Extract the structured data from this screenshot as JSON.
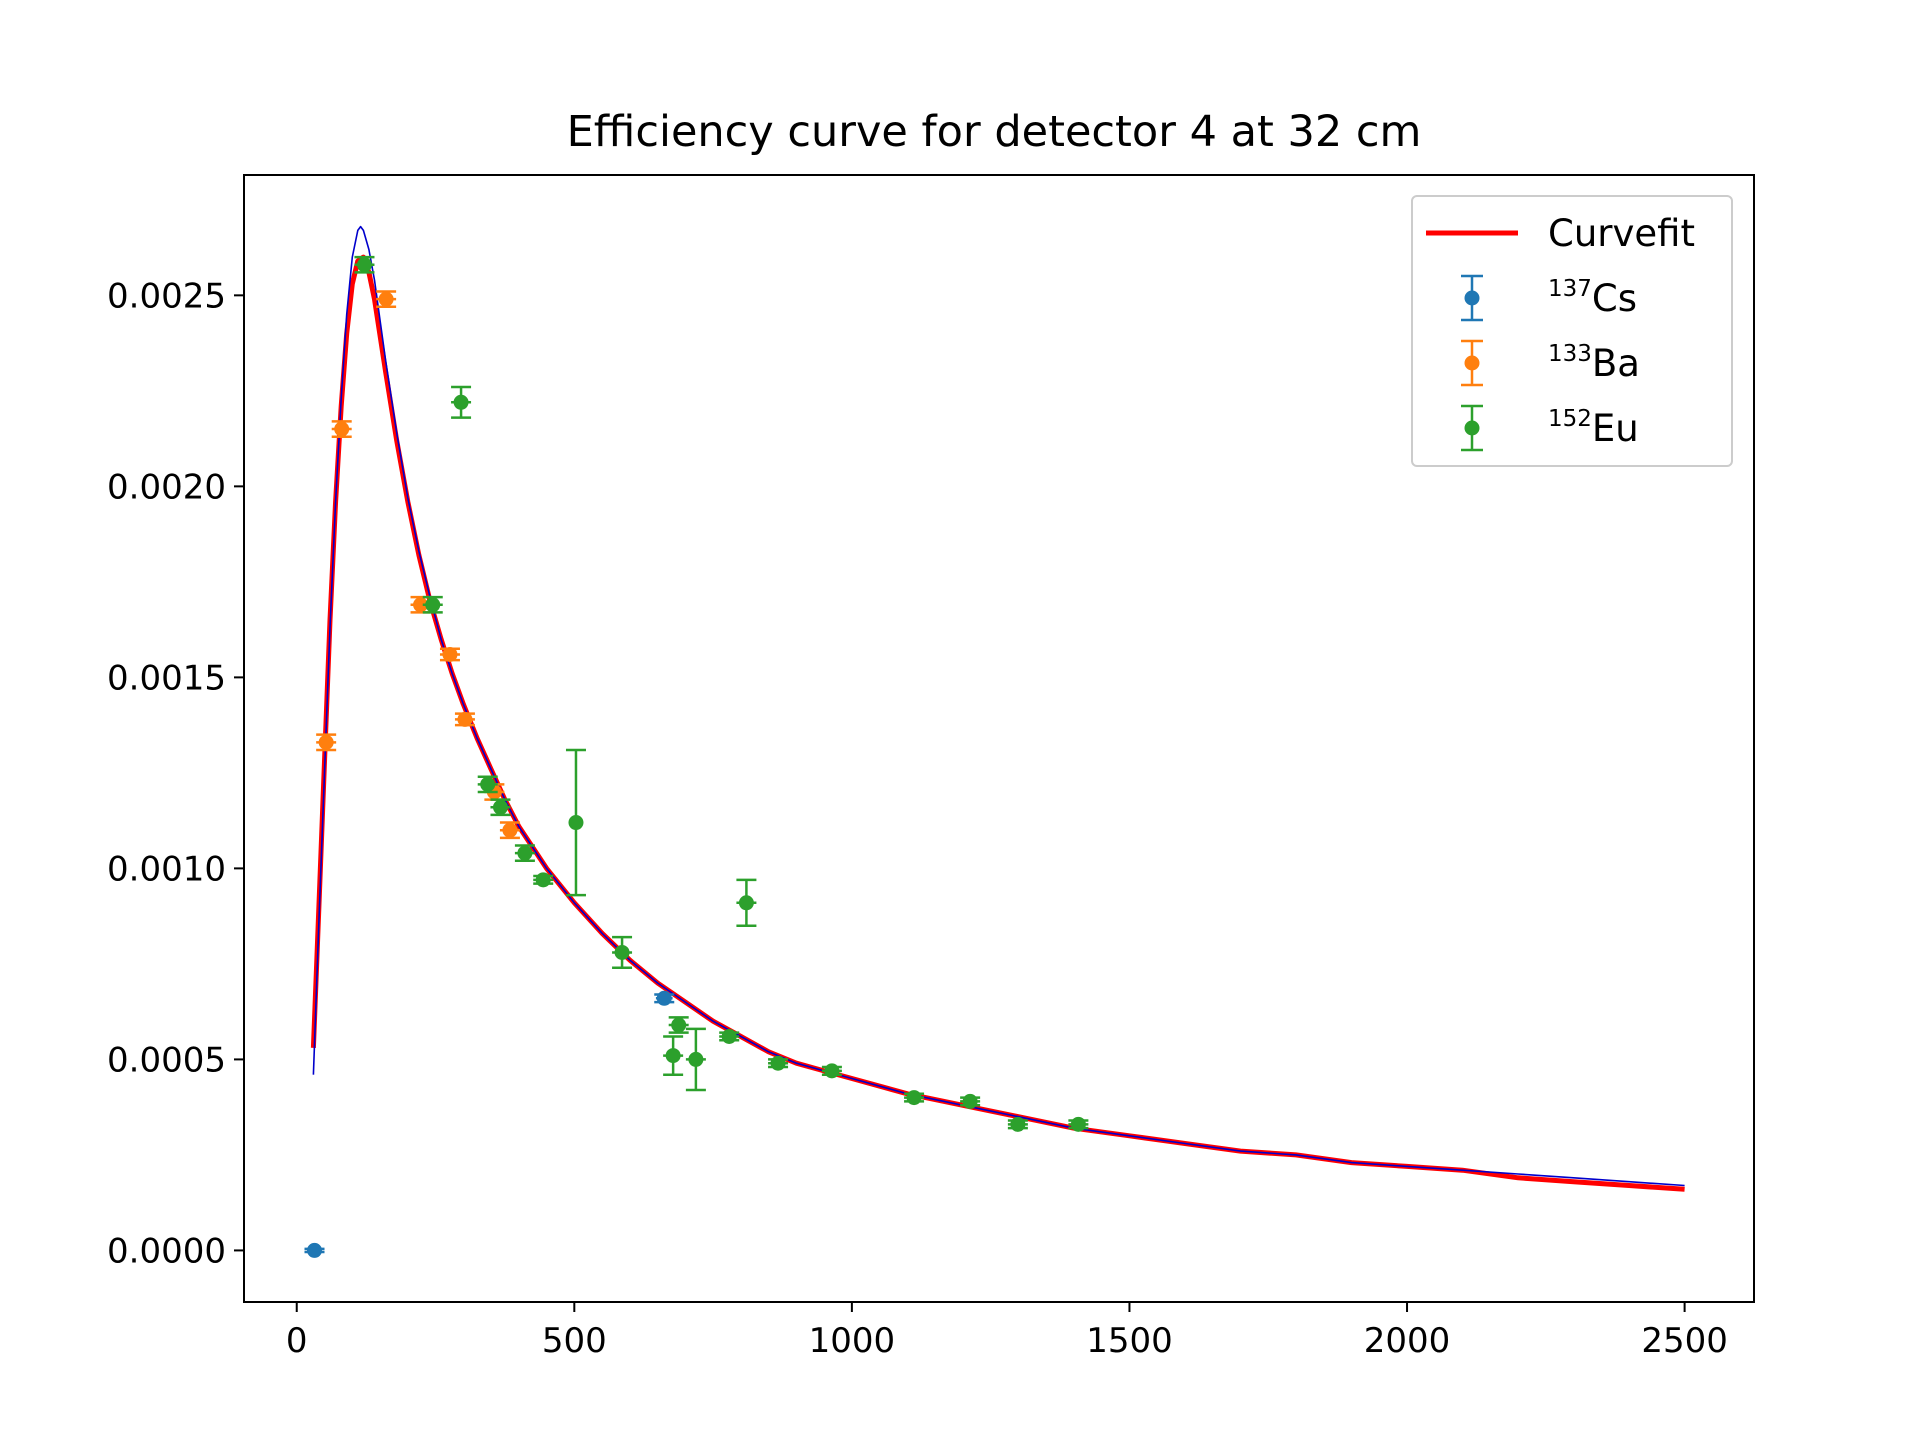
{
  "chart_data": {
    "type": "scatter",
    "title": "Efficiency curve for detector 4 at 32 cm",
    "xlabel": "",
    "ylabel": "",
    "xlim": [
      -95,
      2625
    ],
    "ylim": [
      -0.000135,
      0.002815
    ],
    "xticks": [
      0,
      500,
      1000,
      1500,
      2000,
      2500
    ],
    "xtick_labels": [
      "0",
      "500",
      "1000",
      "1500",
      "2000",
      "2500"
    ],
    "yticks": [
      0.0,
      0.0005,
      0.001,
      0.0015,
      0.002,
      0.0025
    ],
    "ytick_labels": [
      "0.0000",
      "0.0005",
      "0.0010",
      "0.0015",
      "0.0020",
      "0.0025"
    ],
    "grid": false,
    "legend_position": "top-right",
    "series": [
      {
        "name": "Curvefit",
        "kind": "line",
        "color": "#ff0000",
        "points": [
          [
            30,
            0.00053
          ],
          [
            40,
            0.0009
          ],
          [
            50,
            0.00128
          ],
          [
            60,
            0.00165
          ],
          [
            70,
            0.00196
          ],
          [
            80,
            0.00221
          ],
          [
            90,
            0.0024
          ],
          [
            100,
            0.00253
          ],
          [
            110,
            0.00259
          ],
          [
            120,
            0.0026
          ],
          [
            130,
            0.00256
          ],
          [
            140,
            0.00249
          ],
          [
            160,
            0.0023
          ],
          [
            180,
            0.00212
          ],
          [
            200,
            0.00196
          ],
          [
            220,
            0.00182
          ],
          [
            240,
            0.0017
          ],
          [
            260,
            0.0016
          ],
          [
            280,
            0.00151
          ],
          [
            300,
            0.00143
          ],
          [
            325,
            0.00134
          ],
          [
            350,
            0.00126
          ],
          [
            375,
            0.00118
          ],
          [
            400,
            0.00111
          ],
          [
            450,
            0.001
          ],
          [
            500,
            0.00091
          ],
          [
            550,
            0.00083
          ],
          [
            600,
            0.00076
          ],
          [
            650,
            0.0007
          ],
          [
            700,
            0.00065
          ],
          [
            750,
            0.0006
          ],
          [
            800,
            0.00056
          ],
          [
            850,
            0.00052
          ],
          [
            900,
            0.00049
          ],
          [
            950,
            0.00047
          ],
          [
            1000,
            0.00045
          ],
          [
            1100,
            0.00041
          ],
          [
            1200,
            0.00038
          ],
          [
            1300,
            0.00035
          ],
          [
            1400,
            0.00032
          ],
          [
            1500,
            0.0003
          ],
          [
            1600,
            0.00028
          ],
          [
            1700,
            0.00026
          ],
          [
            1800,
            0.00025
          ],
          [
            1900,
            0.00023
          ],
          [
            2000,
            0.00022
          ],
          [
            2100,
            0.00021
          ],
          [
            2200,
            0.00019
          ],
          [
            2300,
            0.00018
          ],
          [
            2400,
            0.00017
          ],
          [
            2500,
            0.00016
          ]
        ]
      },
      {
        "name": "",
        "kind": "line",
        "color": "#0000cc",
        "points": [
          [
            30,
            0.00046
          ],
          [
            40,
            0.00086
          ],
          [
            50,
            0.00125
          ],
          [
            60,
            0.00163
          ],
          [
            70,
            0.00196
          ],
          [
            80,
            0.00223
          ],
          [
            90,
            0.00245
          ],
          [
            100,
            0.0026
          ],
          [
            110,
            0.00267
          ],
          [
            115,
            0.00268
          ],
          [
            120,
            0.00267
          ],
          [
            130,
            0.00262
          ],
          [
            140,
            0.00254
          ],
          [
            160,
            0.00233
          ],
          [
            180,
            0.00214
          ],
          [
            200,
            0.00197
          ],
          [
            220,
            0.00183
          ],
          [
            240,
            0.00171
          ],
          [
            260,
            0.0016
          ],
          [
            280,
            0.00151
          ],
          [
            300,
            0.00143
          ],
          [
            325,
            0.00134
          ],
          [
            350,
            0.00126
          ],
          [
            375,
            0.00118
          ],
          [
            400,
            0.00111
          ],
          [
            450,
            0.001
          ],
          [
            500,
            0.00091
          ],
          [
            550,
            0.00083
          ],
          [
            600,
            0.00076
          ],
          [
            650,
            0.0007
          ],
          [
            700,
            0.00065
          ],
          [
            750,
            0.0006
          ],
          [
            800,
            0.00056
          ],
          [
            850,
            0.00052
          ],
          [
            900,
            0.00049
          ],
          [
            950,
            0.00047
          ],
          [
            1000,
            0.00045
          ],
          [
            1100,
            0.00041
          ],
          [
            1200,
            0.00038
          ],
          [
            1300,
            0.00035
          ],
          [
            1400,
            0.00032
          ],
          [
            1500,
            0.0003
          ],
          [
            1600,
            0.00028
          ],
          [
            1700,
            0.00026
          ],
          [
            1800,
            0.00025
          ],
          [
            1900,
            0.00023
          ],
          [
            2000,
            0.00022
          ],
          [
            2100,
            0.00021
          ],
          [
            2200,
            0.0002
          ],
          [
            2300,
            0.00019
          ],
          [
            2400,
            0.00018
          ],
          [
            2500,
            0.00017
          ]
        ]
      },
      {
        "name": "137Cs",
        "label_super": "137",
        "label_base": "Cs",
        "kind": "errorbar",
        "color": "#1f77b4",
        "points": [
          {
            "x": 32,
            "y": 0.0,
            "xerr": 3,
            "yerr": 4e-06
          },
          {
            "x": 662,
            "y": 0.00066,
            "xerr": 15,
            "yerr": 1e-05
          }
        ]
      },
      {
        "name": "133Ba",
        "label_super": "133",
        "label_base": "Ba",
        "kind": "errorbar",
        "color": "#ff7f0e",
        "points": [
          {
            "x": 53,
            "y": 0.00133,
            "xerr": 18,
            "yerr": 2e-05
          },
          {
            "x": 81,
            "y": 0.00215,
            "xerr": 18,
            "yerr": 2e-05
          },
          {
            "x": 161,
            "y": 0.00249,
            "xerr": 18,
            "yerr": 2e-05
          },
          {
            "x": 223,
            "y": 0.00169,
            "xerr": 18,
            "yerr": 2e-05
          },
          {
            "x": 276,
            "y": 0.00156,
            "xerr": 18,
            "yerr": 1.5e-05
          },
          {
            "x": 303,
            "y": 0.00139,
            "xerr": 18,
            "yerr": 1.5e-05
          },
          {
            "x": 356,
            "y": 0.0012,
            "xerr": 18,
            "yerr": 2e-05
          },
          {
            "x": 384,
            "y": 0.0011,
            "xerr": 18,
            "yerr": 2e-05
          }
        ]
      },
      {
        "name": "152Eu",
        "label_super": "152",
        "label_base": "Eu",
        "kind": "errorbar",
        "color": "#2ca02c",
        "points": [
          {
            "x": 122,
            "y": 0.00258,
            "xerr": 18,
            "yerr": 2e-05
          },
          {
            "x": 245,
            "y": 0.00169,
            "xerr": 18,
            "yerr": 2e-05
          },
          {
            "x": 296,
            "y": 0.00222,
            "xerr": 18,
            "yerr": 4e-05
          },
          {
            "x": 344,
            "y": 0.00122,
            "xerr": 18,
            "yerr": 2e-05
          },
          {
            "x": 367,
            "y": 0.00116,
            "xerr": 18,
            "yerr": 2e-05
          },
          {
            "x": 411,
            "y": 0.00104,
            "xerr": 18,
            "yerr": 2e-05
          },
          {
            "x": 444,
            "y": 0.00097,
            "xerr": 18,
            "yerr": 1e-05
          },
          {
            "x": 503,
            "y": 0.00112,
            "xerr": 0,
            "yerr": 0.00019
          },
          {
            "x": 586,
            "y": 0.00078,
            "xerr": 18,
            "yerr": 4e-05
          },
          {
            "x": 678,
            "y": 0.00051,
            "xerr": 18,
            "yerr": 5e-05
          },
          {
            "x": 688,
            "y": 0.00059,
            "xerr": 18,
            "yerr": 2e-05
          },
          {
            "x": 719,
            "y": 0.0005,
            "xerr": 18,
            "yerr": 8e-05
          },
          {
            "x": 779,
            "y": 0.00056,
            "xerr": 18,
            "yerr": 1e-05
          },
          {
            "x": 810,
            "y": 0.00091,
            "xerr": 18,
            "yerr": 6e-05
          },
          {
            "x": 867,
            "y": 0.00049,
            "xerr": 18,
            "yerr": 1e-05
          },
          {
            "x": 964,
            "y": 0.00047,
            "xerr": 18,
            "yerr": 1e-05
          },
          {
            "x": 1112,
            "y": 0.0004,
            "xerr": 18,
            "yerr": 1e-05
          },
          {
            "x": 1213,
            "y": 0.00039,
            "xerr": 18,
            "yerr": 1e-05
          },
          {
            "x": 1299,
            "y": 0.00033,
            "xerr": 18,
            "yerr": 1e-05
          },
          {
            "x": 1408,
            "y": 0.00033,
            "xerr": 18,
            "yerr": 1e-05
          }
        ]
      }
    ]
  }
}
